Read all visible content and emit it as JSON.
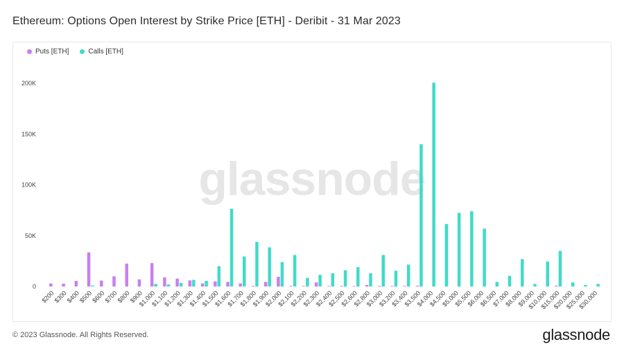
{
  "header": {
    "title": "Ethereum: Options Open Interest by Strike Price [ETH] - Deribit - 31 Mar 2023"
  },
  "watermark": "glassnode",
  "footer": {
    "copyright": "© 2023 Glassnode. All Rights Reserved.",
    "brand": "glassnode"
  },
  "colors": {
    "puts": "#c97fef",
    "calls": "#40dbc9"
  },
  "chart_data": {
    "type": "bar",
    "title": "Ethereum: Options Open Interest by Strike Price [ETH] - Deribit - 31 Mar 2023",
    "xlabel": "",
    "ylabel": "",
    "ylim": [
      0,
      200000
    ],
    "yticks": [
      0,
      50000,
      100000,
      150000,
      200000
    ],
    "ytick_labels": [
      "0",
      "50K",
      "100K",
      "150K",
      "200K"
    ],
    "legend": "top-left",
    "grid": false,
    "categories": [
      "$200",
      "$300",
      "$400",
      "$500",
      "$600",
      "$700",
      "$800",
      "$900",
      "$1,000",
      "$1,100",
      "$1,200",
      "$1,300",
      "$1,400",
      "$1,500",
      "$1,600",
      "$1,700",
      "$1,800",
      "$1,900",
      "$2,000",
      "$2,100",
      "$2,200",
      "$2,300",
      "$2,400",
      "$2,500",
      "$2,600",
      "$2,800",
      "$3,000",
      "$3,200",
      "$3,400",
      "$3,500",
      "$4,000",
      "$4,500",
      "$5,000",
      "$5,500",
      "$6,000",
      "$6,500",
      "$7,000",
      "$8,000",
      "$9,000",
      "$10,000",
      "$15,000",
      "$20,000",
      "$25,000",
      "$30,000"
    ],
    "series": [
      {
        "name": "Puts [ETH]",
        "values": [
          3000,
          2800,
          5500,
          33500,
          5800,
          10000,
          22500,
          7000,
          23000,
          9000,
          7800,
          6000,
          3000,
          5000,
          4500,
          3000,
          500,
          4500,
          9500,
          300,
          500,
          4000,
          300,
          500,
          300,
          1500,
          500,
          300,
          300,
          800,
          0,
          0,
          0,
          0,
          0,
          0,
          0,
          0,
          0,
          0,
          800,
          0,
          0,
          0
        ]
      },
      {
        "name": "Calls [ETH]",
        "values": [
          0,
          0,
          0,
          1000,
          0,
          0,
          0,
          0,
          2500,
          2000,
          3500,
          6500,
          5500,
          20000,
          76500,
          29500,
          44000,
          38500,
          24000,
          31000,
          8500,
          11500,
          13000,
          16000,
          19000,
          13000,
          31000,
          15500,
          21500,
          140000,
          200500,
          61500,
          72500,
          74000,
          57000,
          4500,
          10500,
          27000,
          2500,
          24500,
          35000,
          4000,
          1500,
          2500
        ]
      }
    ]
  }
}
